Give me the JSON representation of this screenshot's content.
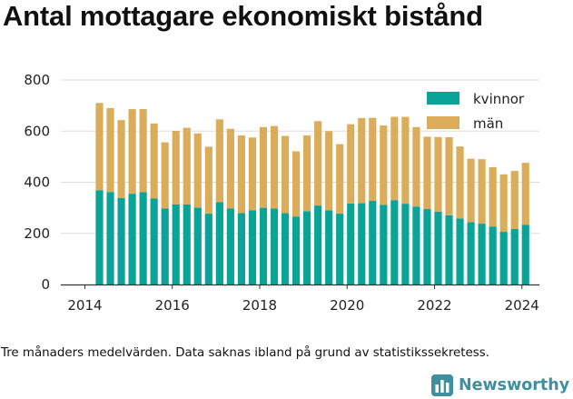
{
  "title": "Antal mottagare ekonomiskt bistånd",
  "caption": "Tre månaders medelvärden. Data saknas ibland på grund av statistikssekretess.",
  "brand": {
    "name": "Newsworthy",
    "color": "#3e8f9f",
    "icon": "bar-chart-logo-icon"
  },
  "colors": {
    "kvinnor": "#0aa398",
    "man": "#dbad5a",
    "gridline": "#dddddd",
    "axis": "#333333"
  },
  "chart_data": {
    "type": "bar",
    "stacked": true,
    "ylim": [
      0,
      800
    ],
    "yticks": [
      "0",
      "200",
      "400",
      "600",
      "800"
    ],
    "xticks": [
      {
        "label": "2014",
        "x": 2014
      },
      {
        "label": "2016",
        "x": 2016
      },
      {
        "label": "2018",
        "x": 2018
      },
      {
        "label": "2020",
        "x": 2020
      },
      {
        "label": "2022",
        "x": 2022
      },
      {
        "label": "2024",
        "x": 2024
      }
    ],
    "xlim": [
      2013.45,
      2024.4
    ],
    "grid": "horizontal",
    "legend_position": "top-right",
    "x": [
      2014.333,
      2014.583,
      2014.833,
      2015.083,
      2015.333,
      2015.583,
      2015.833,
      2016.083,
      2016.333,
      2016.583,
      2016.833,
      2017.083,
      2017.333,
      2017.583,
      2017.833,
      2018.083,
      2018.333,
      2018.583,
      2018.833,
      2019.083,
      2019.333,
      2019.583,
      2019.833,
      2020.083,
      2020.333,
      2020.583,
      2020.833,
      2021.083,
      2021.333,
      2021.583,
      2021.833,
      2022.083,
      2022.333,
      2022.583,
      2022.833,
      2023.083,
      2023.333,
      2023.583,
      2023.833,
      2024.083
    ],
    "series": [
      {
        "name": "kvinnor",
        "color": "#0aa398",
        "values": [
          369,
          362,
          338,
          355,
          361,
          336,
          297,
          313,
          313,
          301,
          277,
          322,
          297,
          279,
          290,
          300,
          297,
          279,
          266,
          287,
          309,
          290,
          277,
          317,
          318,
          327,
          312,
          330,
          316,
          305,
          295,
          285,
          271,
          258,
          244,
          238,
          227,
          206,
          217,
          234
        ]
      },
      {
        "name": "män",
        "color": "#dbad5a",
        "values": [
          341,
          328,
          305,
          331,
          325,
          294,
          259,
          288,
          300,
          290,
          262,
          324,
          312,
          304,
          285,
          316,
          323,
          302,
          255,
          296,
          330,
          310,
          272,
          310,
          333,
          325,
          310,
          326,
          340,
          311,
          283,
          292,
          305,
          282,
          248,
          252,
          232,
          225,
          227,
          242
        ]
      }
    ]
  }
}
